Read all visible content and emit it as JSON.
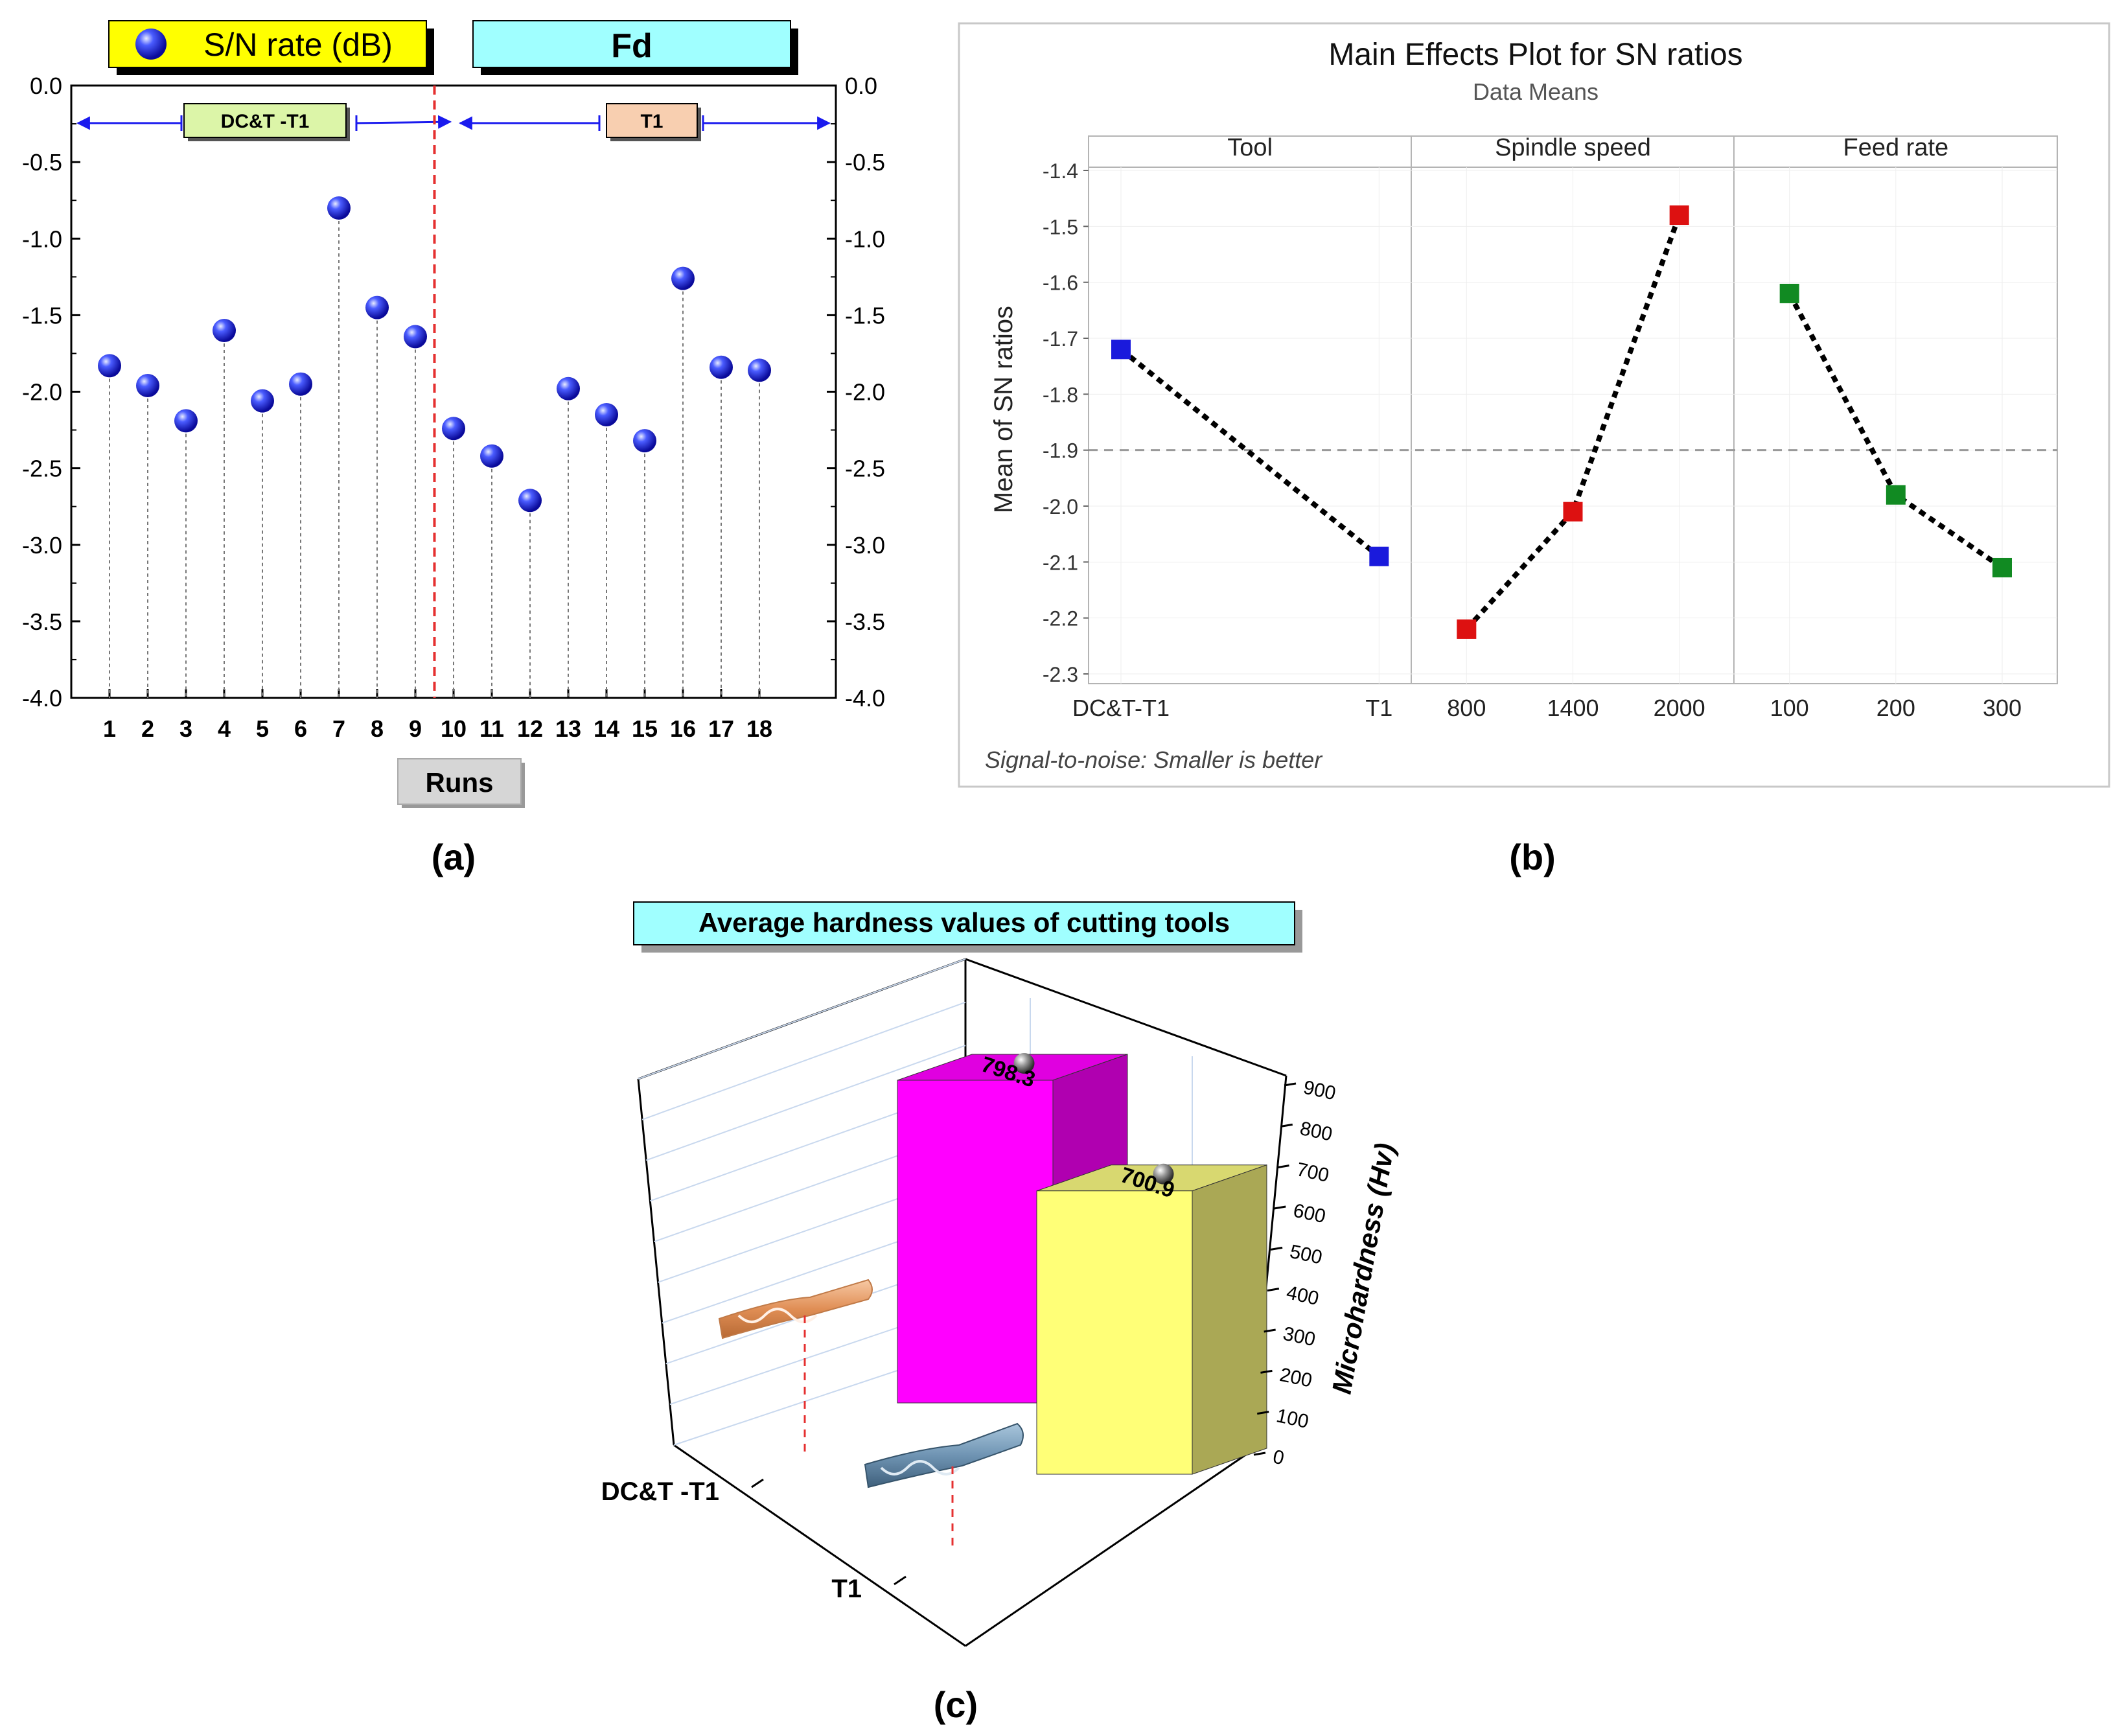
{
  "chart_data": [
    {
      "type": "scatter",
      "panel_label": "(a)",
      "legend": [
        {
          "label": "S/N rate (dB)",
          "color": "#ffff00",
          "marker": "blue-sphere"
        },
        {
          "label": "Fd",
          "color": "#a0ffff"
        }
      ],
      "group_labels": [
        "DC&T -T1",
        "T1"
      ],
      "xlabel": "Runs",
      "x": [
        1,
        2,
        3,
        4,
        5,
        6,
        7,
        8,
        9,
        10,
        11,
        12,
        13,
        14,
        15,
        16,
        17,
        18
      ],
      "y": [
        -1.83,
        -1.96,
        -2.19,
        -1.6,
        -2.06,
        -1.95,
        -0.8,
        -1.45,
        -1.64,
        -2.24,
        -2.42,
        -2.71,
        -1.98,
        -2.15,
        -2.32,
        -1.26,
        -1.84,
        -1.86
      ],
      "ylim": [
        -4.0,
        0.0
      ],
      "yticks": [
        "0.0",
        "-0.5",
        "-1.0",
        "-1.5",
        "-2.0",
        "-2.5",
        "-3.0",
        "-3.5",
        "-4.0"
      ],
      "divider_after_run": 9,
      "marker_color": "#1a1aee",
      "divider_color": "#e53030"
    },
    {
      "type": "line",
      "panel_label": "(b)",
      "title": "Main Effects Plot for SN ratios",
      "subtitle": "Data Means",
      "ylabel": "Mean of SN ratios",
      "ylim": [
        -2.3,
        -1.4
      ],
      "yticks": [
        "-1.4",
        "-1.5",
        "-1.6",
        "-1.7",
        "-1.8",
        "-1.9",
        "-2.0",
        "-2.1",
        "-2.2",
        "-2.3"
      ],
      "reference_line": -1.9,
      "footnote": "Signal-to-noise: Smaller is better",
      "panels": [
        {
          "name": "Tool",
          "categories": [
            "DC&T-T1",
            "T1"
          ],
          "values": [
            -1.72,
            -2.09
          ],
          "color": "#1a1adc"
        },
        {
          "name": "Spindle speed",
          "categories": [
            "800",
            "1400",
            "2000"
          ],
          "values": [
            -2.22,
            -2.01,
            -1.48
          ],
          "color": "#dd1111"
        },
        {
          "name": "Feed rate",
          "categories": [
            "100",
            "200",
            "300"
          ],
          "values": [
            -1.62,
            -1.98,
            -2.11
          ],
          "color": "#118a22"
        }
      ]
    },
    {
      "type": "bar",
      "panel_label": "(c)",
      "title": "Average hardness values of cutting tools",
      "categories": [
        "DC&T -T1",
        "T1"
      ],
      "values": [
        798.3,
        700.9
      ],
      "value_labels": [
        "798.3",
        "700.9"
      ],
      "zlabel": "Microhardness (Hv)",
      "zlim": [
        0,
        900
      ],
      "zticks": [
        "0",
        "100",
        "200",
        "300",
        "400",
        "500",
        "600",
        "700",
        "800",
        "900"
      ],
      "bar_colors": [
        "#ff00ff",
        "#ffff77"
      ]
    }
  ]
}
